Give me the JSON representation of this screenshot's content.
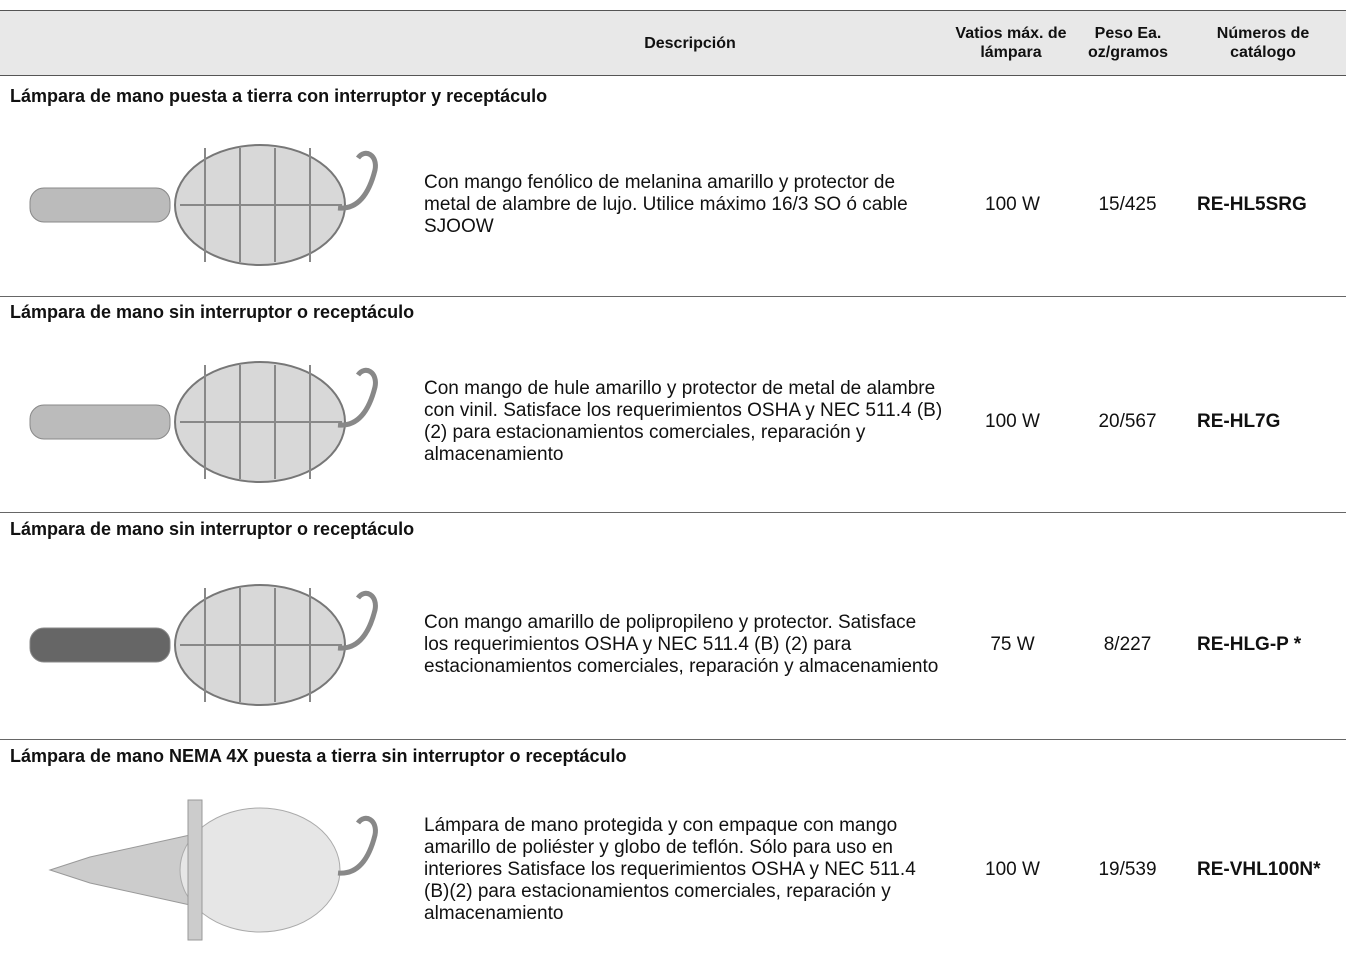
{
  "header": {
    "columns": [
      "Descripción",
      "Vatios máx. de lámpara",
      "Peso Ea. oz/gramos",
      "Números de catálogo"
    ]
  },
  "sections": [
    {
      "title": "Lámpara de mano puesta a tierra con interruptor y receptáculo",
      "description": "Con mango fenólico de melanina amarillo y protector de metal de alambre de lujo. Utilice máximo 16/3 SO ó cable SJOOW",
      "watts": "100 W",
      "weight": "15/425",
      "catalog": "RE-HL5SRG"
    },
    {
      "title": "Lámpara de mano sin interruptor o receptáculo",
      "description": "Con mango de hule amarillo y protector de metal de alambre con vinil. Satisface los requerimientos OSHA y NEC 511.4 (B) (2) para estacionamientos comerciales, reparación y almacenamiento",
      "watts": "100 W",
      "weight": "20/567",
      "catalog": "RE-HL7G"
    },
    {
      "title": "Lámpara de mano sin interruptor o receptáculo",
      "description": "Con mango amarillo de polipropileno y protector. Satisface los requerimientos OSHA y NEC 511.4 (B) (2) para estacionamientos comerciales, reparación y almacenamiento",
      "watts": "75 W",
      "weight": "8/227",
      "catalog": "RE-HLG-P *"
    },
    {
      "title": "Lámpara de mano NEMA 4X puesta a tierra sin interruptor o receptáculo",
      "description": "Lámpara de mano protegida y con empaque con mango amarillo de poliéster y globo de teflón. Sólo para uso en interiores Satisface los requerimientos OSHA y NEC 511.4 (B)(2) para estacionamientos comerciales, reparación y almacenamiento",
      "watts": "100 W",
      "weight": "19/539",
      "catalog": "RE-VHL100N*"
    }
  ]
}
